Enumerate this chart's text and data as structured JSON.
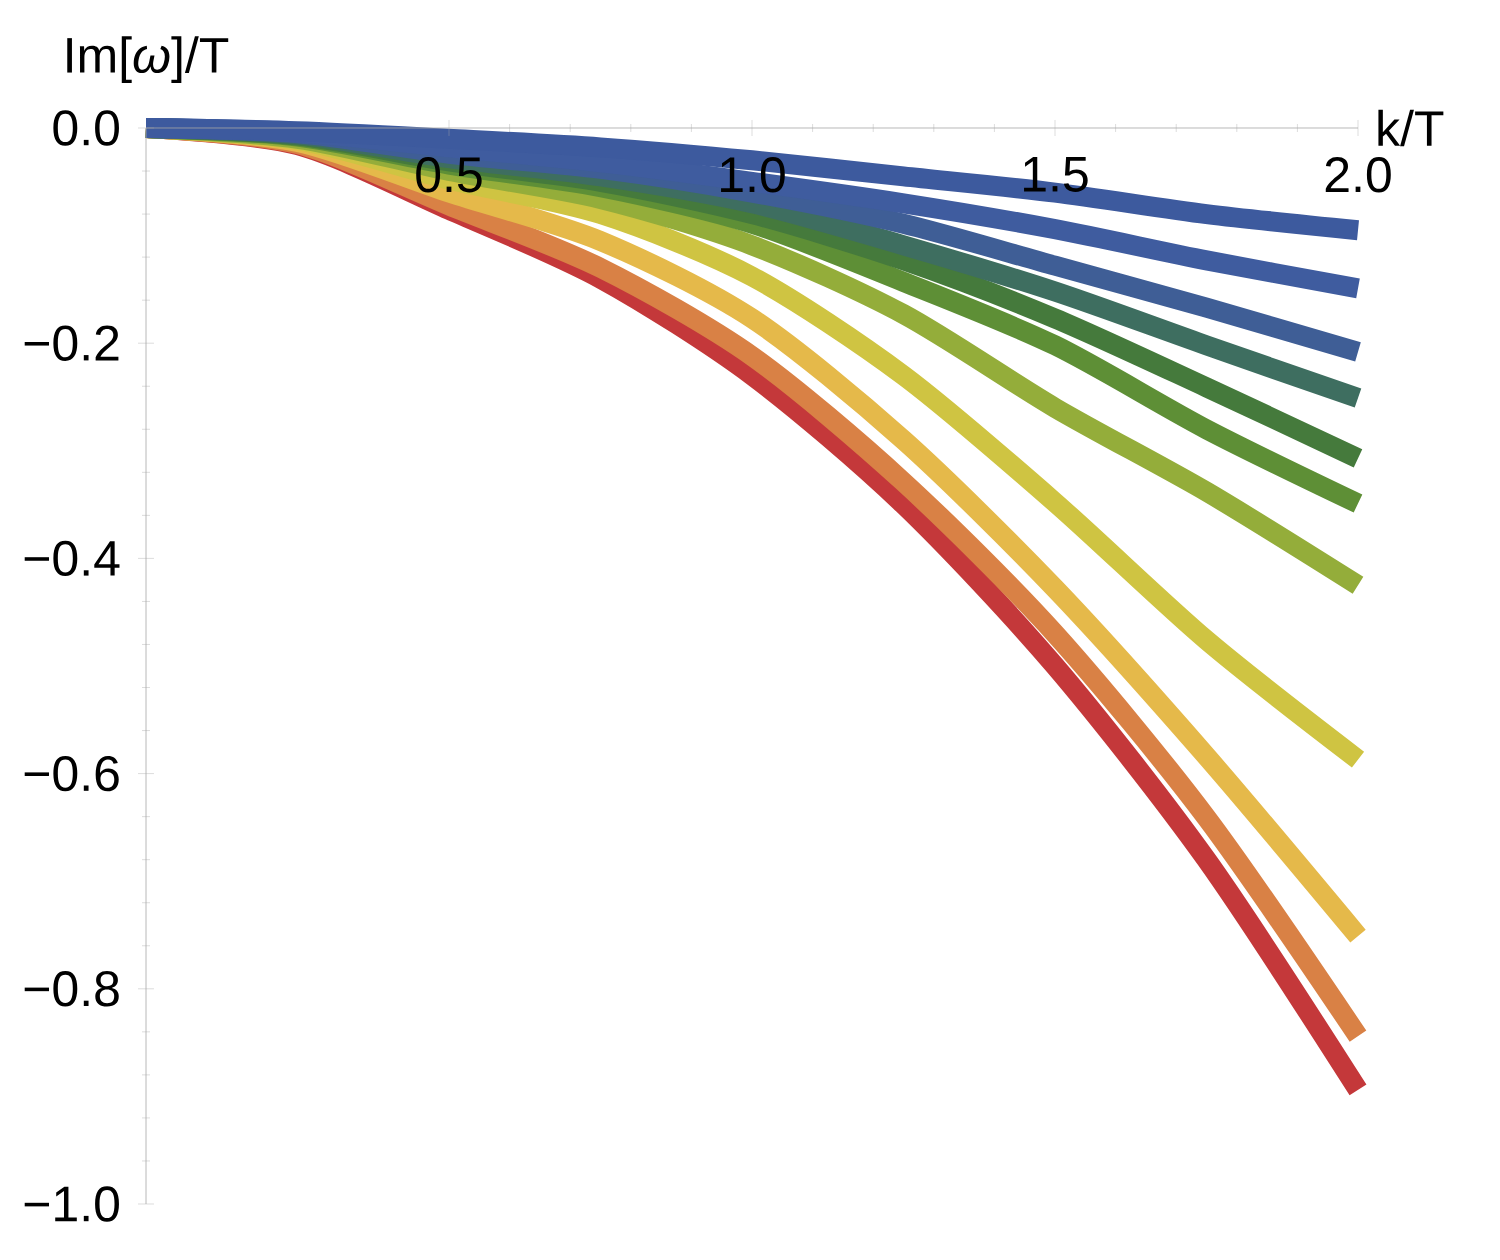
{
  "chart_data": {
    "type": "line",
    "xlabel": "k/T",
    "ylabel": "Im[*ω*]/T",
    "xlim": [
      0,
      2
    ],
    "ylim": [
      -1,
      0
    ],
    "xticks": [
      {
        "value": 0.5,
        "label": "0.5"
      },
      {
        "value": 1,
        "label": "1.0"
      },
      {
        "value": 1.5,
        "label": "1.5"
      },
      {
        "value": 2,
        "label": "2.0"
      }
    ],
    "yticks": [
      {
        "value": 0,
        "label": "0.0"
      },
      {
        "value": -0.2,
        "label": "−0.2"
      },
      {
        "value": -0.4,
        "label": "−0.4"
      },
      {
        "value": -0.6,
        "label": "−0.6"
      },
      {
        "value": -0.8,
        "label": "−0.8"
      },
      {
        "value": -1,
        "label": "−1.0"
      }
    ],
    "grid": false,
    "marker": "none",
    "line_style": "solid",
    "x": [
      0,
      0.25,
      0.5,
      0.75,
      1.0,
      1.25,
      1.5,
      1.75,
      2.0
    ],
    "series": [
      {
        "color": "#c4383a",
        "values": [
          0,
          -0.016,
          -0.076,
          -0.14,
          -0.23,
          -0.35,
          -0.5,
          -0.68,
          -0.894
        ]
      },
      {
        "color": "#d98145",
        "values": [
          0,
          -0.015,
          -0.072,
          -0.13,
          -0.212,
          -0.329,
          -0.47,
          -0.641,
          -0.844
        ]
      },
      {
        "color": "#e5b94a",
        "values": [
          0,
          -0.013,
          -0.06,
          -0.105,
          -0.177,
          -0.29,
          -0.428,
          -0.584,
          -0.751
        ]
      },
      {
        "color": "#cfc442",
        "values": [
          0,
          -0.011,
          -0.048,
          -0.08,
          -0.138,
          -0.23,
          -0.348,
          -0.476,
          -0.587
        ]
      },
      {
        "color": "#94ad3a",
        "values": [
          0,
          -0.01,
          -0.04,
          -0.066,
          -0.109,
          -0.173,
          -0.26,
          -0.338,
          -0.425
        ]
      },
      {
        "color": "#5e8f36",
        "values": [
          0,
          -0.008,
          -0.034,
          -0.055,
          -0.089,
          -0.143,
          -0.202,
          -0.28,
          -0.349
        ]
      },
      {
        "color": "#457a3c",
        "values": [
          0,
          -0.007,
          -0.031,
          -0.05,
          -0.08,
          -0.123,
          -0.177,
          -0.241,
          -0.307
        ]
      },
      {
        "color": "#3e6e60",
        "values": [
          0,
          -0.006,
          -0.028,
          -0.045,
          -0.07,
          -0.109,
          -0.152,
          -0.202,
          -0.251
        ]
      },
      {
        "color": "#3f5e96",
        "values": [
          0,
          -0.005,
          -0.024,
          -0.038,
          -0.06,
          -0.089,
          -0.128,
          -0.167,
          -0.208
        ]
      },
      {
        "color": "#3f5c9f",
        "values": [
          0,
          -0.004,
          -0.018,
          -0.032,
          -0.05,
          -0.07,
          -0.094,
          -0.123,
          -0.149
        ]
      },
      {
        "color": "#3d5a9e",
        "values": [
          0,
          -0.003,
          -0.01,
          -0.018,
          -0.03,
          -0.045,
          -0.06,
          -0.08,
          -0.095
        ]
      }
    ]
  }
}
